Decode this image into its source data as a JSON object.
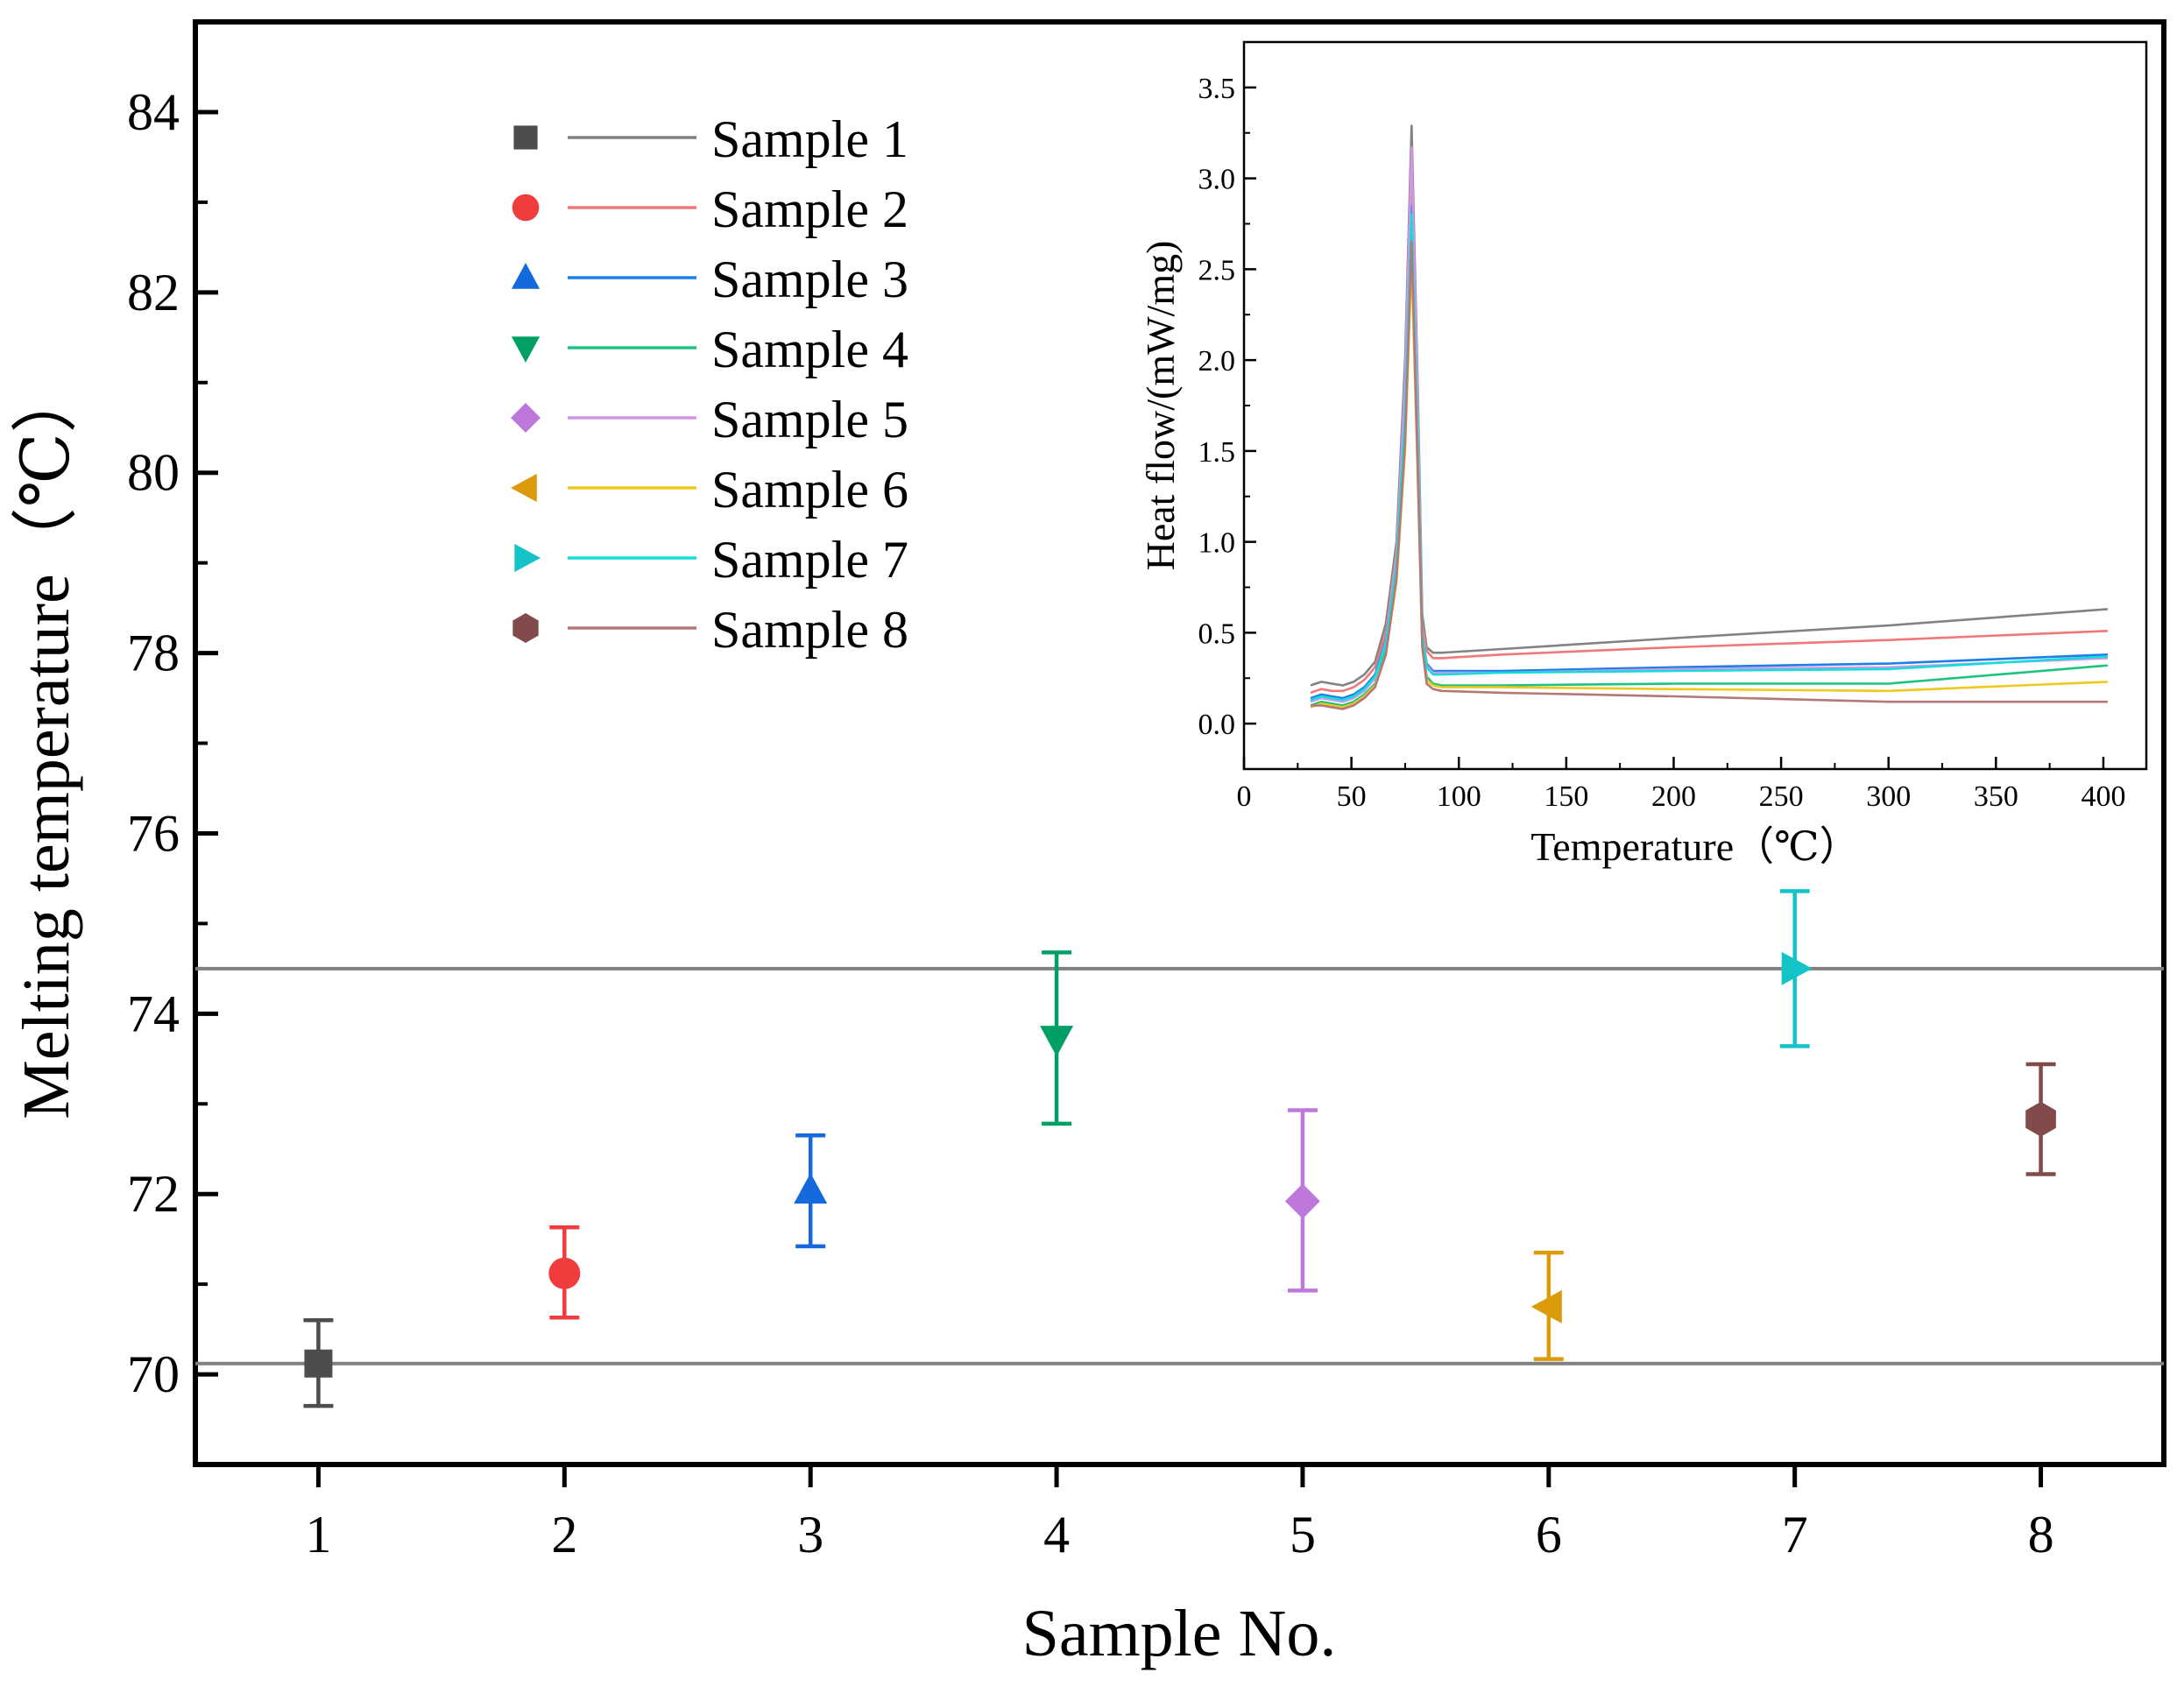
{
  "chart_data": [
    {
      "type": "scatter",
      "title": "",
      "xlabel": "Sample No.",
      "ylabel": "Melting temperature（℃）",
      "xlim": [
        0.5,
        8.5
      ],
      "ylim": [
        69,
        85
      ],
      "x_ticks": [
        1,
        2,
        3,
        4,
        5,
        6,
        7,
        8
      ],
      "x_tick_labels": [
        "1",
        "2",
        "3",
        "4",
        "5",
        "6",
        "7",
        "8"
      ],
      "y_ticks": [
        70,
        72,
        74,
        76,
        78,
        80,
        82,
        84
      ],
      "y_tick_labels": [
        "70",
        "72",
        "74",
        "76",
        "78",
        "80",
        "82",
        "84"
      ],
      "reference_lines": [
        70.12,
        74.5
      ],
      "reference_color": "#808080",
      "points": [
        {
          "x": 1,
          "y": 70.12,
          "err_low": 69.65,
          "err_high": 70.6,
          "marker": "square",
          "color": "#4d4d4d"
        },
        {
          "x": 2,
          "y": 71.12,
          "err_low": 70.63,
          "err_high": 71.63,
          "marker": "circle",
          "color": "#f03c3c"
        },
        {
          "x": 3,
          "y": 72.04,
          "err_low": 71.42,
          "err_high": 72.65,
          "marker": "triangle-up",
          "color": "#1469dc"
        },
        {
          "x": 4,
          "y": 73.72,
          "err_low": 72.78,
          "err_high": 74.68,
          "marker": "triangle-down",
          "color": "#00a064"
        },
        {
          "x": 5,
          "y": 71.92,
          "err_low": 70.93,
          "err_high": 72.93,
          "marker": "diamond",
          "color": "#be78dc"
        },
        {
          "x": 6,
          "y": 70.75,
          "err_low": 70.17,
          "err_high": 71.35,
          "marker": "triangle-left",
          "color": "#dc9b0a"
        },
        {
          "x": 7,
          "y": 74.5,
          "err_low": 73.64,
          "err_high": 75.36,
          "marker": "triangle-right",
          "color": "#14c3c8"
        },
        {
          "x": 8,
          "y": 72.83,
          "err_low": 72.22,
          "err_high": 73.44,
          "marker": "hexagon",
          "color": "#824b4b"
        }
      ],
      "legend": {
        "placement": "upper-left",
        "entries": [
          {
            "label": "Sample 1",
            "marker": "square",
            "marker_color": "#4d4d4d",
            "line_color": "#828282"
          },
          {
            "label": "Sample 2",
            "marker": "circle",
            "marker_color": "#f03c3c",
            "line_color": "#f07878"
          },
          {
            "label": "Sample 3",
            "marker": "triangle-up",
            "marker_color": "#1469dc",
            "line_color": "#1e7de6"
          },
          {
            "label": "Sample 4",
            "marker": "triangle-down",
            "marker_color": "#00a064",
            "line_color": "#1ec382"
          },
          {
            "label": "Sample 5",
            "marker": "diamond",
            "marker_color": "#be78dc",
            "line_color": "#d296e6"
          },
          {
            "label": "Sample 6",
            "marker": "triangle-left",
            "marker_color": "#dc9b0a",
            "line_color": "#f0c81e"
          },
          {
            "label": "Sample 7",
            "marker": "triangle-right",
            "marker_color": "#14c3c8",
            "line_color": "#14dcdc"
          },
          {
            "label": "Sample 8",
            "marker": "hexagon",
            "marker_color": "#824b4b",
            "line_color": "#b47878"
          }
        ]
      }
    },
    {
      "type": "line",
      "title": "",
      "xlabel": "Temperature（℃）",
      "ylabel": "Heat flow/(mW/mg)",
      "xlim": [
        0,
        420
      ],
      "ylim": [
        -0.25,
        3.75
      ],
      "x_ticks": [
        0,
        50,
        100,
        150,
        200,
        250,
        300,
        350,
        400
      ],
      "x_tick_labels": [
        "0",
        "50",
        "100",
        "150",
        "200",
        "250",
        "300",
        "350",
        "400"
      ],
      "y_ticks": [
        0.0,
        0.5,
        1.0,
        1.5,
        2.0,
        2.5,
        3.0,
        3.5
      ],
      "y_tick_labels": [
        "0.0",
        "0.5",
        "1.0",
        "1.5",
        "2.0",
        "2.5",
        "3.0",
        "3.5"
      ],
      "series": [
        {
          "name": "Sample 1",
          "color": "#828282",
          "peak": 3.29,
          "x": [
            31,
            36,
            41,
            46,
            51,
            56,
            61,
            66,
            71,
            75,
            78,
            81,
            83,
            85,
            88,
            92,
            120,
            200,
            300,
            402
          ],
          "y": [
            0.21,
            0.23,
            0.22,
            0.21,
            0.23,
            0.27,
            0.34,
            0.55,
            1.0,
            2.0,
            3.29,
            1.8,
            0.6,
            0.42,
            0.39,
            0.39,
            0.41,
            0.47,
            0.54,
            0.63
          ]
        },
        {
          "name": "Sample 2",
          "color": "#f07878",
          "peak": 2.95,
          "x": [
            31,
            36,
            41,
            46,
            51,
            56,
            61,
            66,
            71,
            75,
            78,
            81,
            83,
            85,
            88,
            92,
            120,
            200,
            300,
            402
          ],
          "y": [
            0.17,
            0.19,
            0.18,
            0.18,
            0.2,
            0.24,
            0.31,
            0.5,
            0.95,
            1.8,
            2.95,
            1.6,
            0.55,
            0.4,
            0.36,
            0.36,
            0.38,
            0.42,
            0.46,
            0.51
          ]
        },
        {
          "name": "Sample 3",
          "color": "#1e7de6",
          "peak": 2.85,
          "x": [
            31,
            36,
            41,
            46,
            51,
            56,
            61,
            66,
            71,
            75,
            78,
            81,
            83,
            85,
            88,
            92,
            120,
            200,
            300,
            402
          ],
          "y": [
            0.14,
            0.16,
            0.15,
            0.14,
            0.16,
            0.2,
            0.27,
            0.46,
            0.9,
            1.7,
            2.85,
            1.5,
            0.5,
            0.33,
            0.29,
            0.29,
            0.29,
            0.31,
            0.33,
            0.38
          ]
        },
        {
          "name": "Sample 4",
          "color": "#1ec382",
          "peak": 2.7,
          "x": [
            31,
            36,
            41,
            46,
            51,
            56,
            61,
            66,
            71,
            75,
            78,
            81,
            83,
            85,
            88,
            92,
            120,
            200,
            300,
            402
          ],
          "y": [
            0.1,
            0.12,
            0.11,
            0.1,
            0.12,
            0.16,
            0.22,
            0.4,
            0.82,
            1.6,
            2.7,
            1.4,
            0.45,
            0.26,
            0.22,
            0.21,
            0.21,
            0.22,
            0.22,
            0.32
          ]
        },
        {
          "name": "Sample 5",
          "color": "#d296e6",
          "peak": 3.17,
          "x": [
            31,
            36,
            41,
            46,
            51,
            56,
            61,
            66,
            71,
            75,
            78,
            81,
            83,
            85,
            88,
            92,
            120,
            200,
            300,
            402
          ],
          "y": [
            0.12,
            0.14,
            0.13,
            0.12,
            0.14,
            0.18,
            0.25,
            0.45,
            0.92,
            1.9,
            3.17,
            1.7,
            0.52,
            0.32,
            0.28,
            0.28,
            0.28,
            0.3,
            0.31,
            0.36
          ]
        },
        {
          "name": "Sample 6",
          "color": "#f0c81e",
          "peak": 2.55,
          "x": [
            31,
            36,
            41,
            46,
            51,
            56,
            61,
            66,
            71,
            75,
            78,
            81,
            83,
            85,
            88,
            92,
            120,
            200,
            300,
            402
          ],
          "y": [
            0.09,
            0.11,
            0.1,
            0.09,
            0.11,
            0.15,
            0.21,
            0.38,
            0.78,
            1.5,
            2.55,
            1.3,
            0.42,
            0.24,
            0.21,
            0.2,
            0.2,
            0.19,
            0.18,
            0.23
          ]
        },
        {
          "name": "Sample 7",
          "color": "#14dcdc",
          "peak": 2.8,
          "x": [
            31,
            36,
            41,
            46,
            51,
            56,
            61,
            66,
            71,
            75,
            78,
            81,
            83,
            85,
            88,
            92,
            120,
            200,
            300,
            402
          ],
          "y": [
            0.13,
            0.15,
            0.14,
            0.13,
            0.15,
            0.19,
            0.26,
            0.44,
            0.88,
            1.7,
            2.8,
            1.5,
            0.5,
            0.31,
            0.27,
            0.27,
            0.28,
            0.29,
            0.3,
            0.37
          ]
        },
        {
          "name": "Sample 8",
          "color": "#b47878",
          "peak": 2.65,
          "x": [
            31,
            36,
            41,
            46,
            51,
            56,
            61,
            66,
            71,
            75,
            78,
            81,
            83,
            85,
            88,
            92,
            120,
            200,
            300,
            402
          ],
          "y": [
            0.1,
            0.1,
            0.09,
            0.08,
            0.1,
            0.14,
            0.2,
            0.38,
            0.8,
            1.55,
            2.65,
            1.35,
            0.42,
            0.22,
            0.19,
            0.18,
            0.17,
            0.15,
            0.12,
            0.12
          ]
        }
      ]
    }
  ]
}
